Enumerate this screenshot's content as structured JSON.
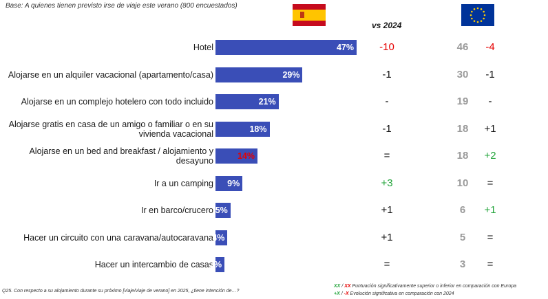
{
  "base_text": "Base: A quienes tienen previsto irse de viaje este verano (800 encuestados)",
  "vs_label": "vs 2024",
  "chart_data": {
    "type": "bar",
    "orientation": "horizontal",
    "xlim": [
      0,
      50
    ],
    "categories": [
      "Hotel",
      "Alojarse en un alquiler vacacional (apartamento/casa)",
      "Alojarse en un complejo hotelero con todo incluido",
      "Alojarse gratis en casa de un amigo o familiar o en su vivienda vacacional",
      "Alojarse en un bed and breakfast / alojamiento y desayuno",
      "Ir a un camping",
      "Ir en barco/crucero",
      "Hacer un circuito con una caravana/autocaravana",
      "Hacer un intercambio de casas"
    ],
    "values": [
      47,
      29,
      21,
      18,
      14,
      9,
      5,
      4,
      3
    ],
    "value_labels": [
      "47%",
      "29%",
      "21%",
      "18%",
      "14%",
      "9%",
      "5%",
      "4%",
      "3%"
    ],
    "value_label_colors": [
      "#ffffff",
      "#ffffff",
      "#ffffff",
      "#ffffff",
      "#e60000",
      "#ffffff",
      "#ffffff",
      "#ffffff",
      "#ffffff"
    ],
    "bar_color": "#3a4eb7",
    "vs_2024": [
      "-10",
      "-1",
      "-",
      "-1",
      "=",
      "+3",
      "+1",
      "+1",
      "="
    ],
    "vs_2024_colors": [
      "#e60000",
      "#111111",
      "#111111",
      "#111111",
      "#111111",
      "#22a43a",
      "#111111",
      "#111111",
      "#111111"
    ],
    "europe_values": [
      "46",
      "30",
      "19",
      "18",
      "18",
      "10",
      "6",
      "5",
      "3"
    ],
    "europe_vs_2024": [
      "-4",
      "-1",
      "-",
      "+1",
      "+2",
      "=",
      "+1",
      "=",
      "="
    ],
    "europe_vs_2024_colors": [
      "#e60000",
      "#111111",
      "#111111",
      "#111111",
      "#22a43a",
      "#111111",
      "#22a43a",
      "#111111",
      "#111111"
    ]
  },
  "footnote": "Q25. Con respecto a su alojamiento durante su próximo [viaje/viaje de verano] en 2025, ¿tiene intención de…?",
  "legend": {
    "line1_green": "XX",
    "line1_sep": " / ",
    "line1_red": "XX",
    "line1_text": " Puntuación significativamente superior o inferior en comparación con Europa",
    "line2_green": "+X",
    "line2_sep": " / ",
    "line2_red": "-X",
    "line2_text": " Evolución significativa en comparación con 2024"
  }
}
